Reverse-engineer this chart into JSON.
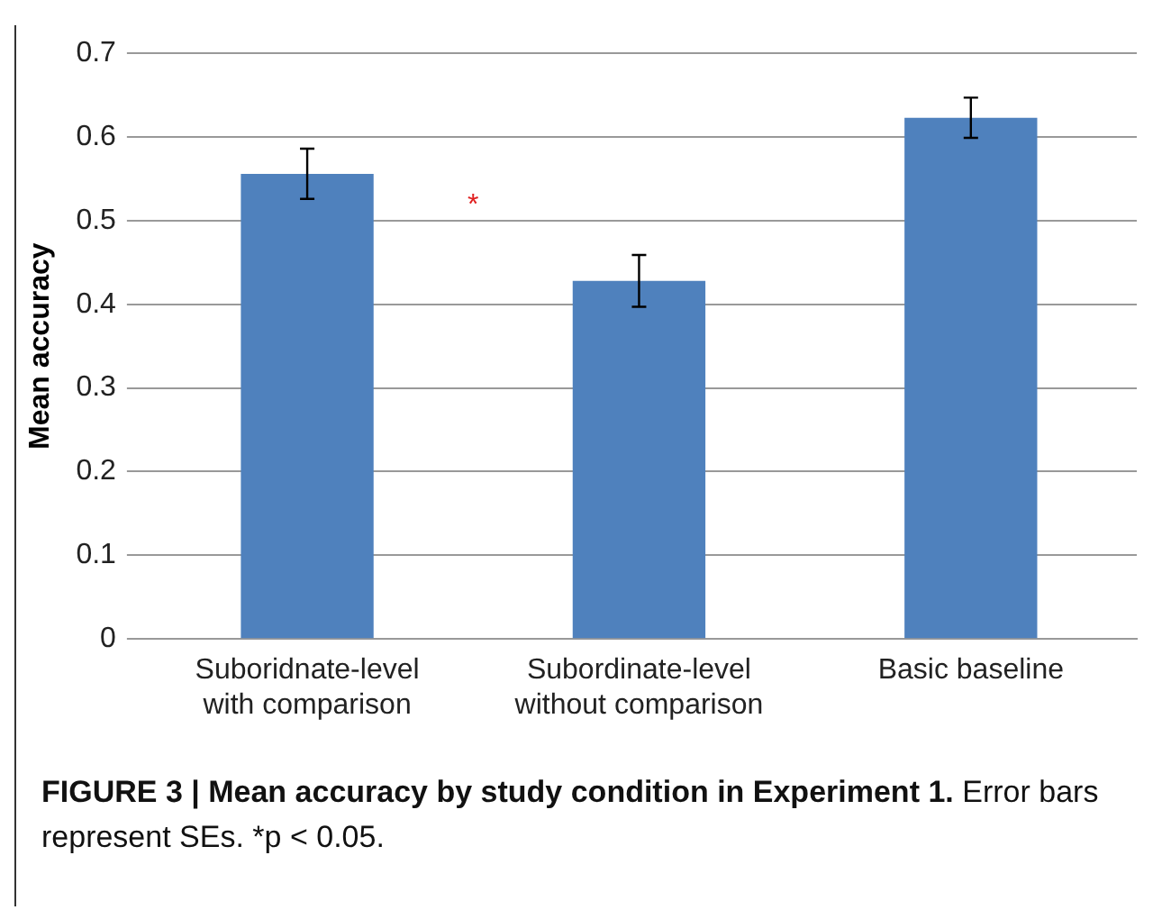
{
  "chart_data": {
    "type": "bar",
    "title": "FIGURE 3 | Mean accuracy by study condition in Experiment 1.",
    "ylabel": "Mean accuracy",
    "categories": [
      "Suboridnate-level with comparison",
      "Subordinate-level without comparison",
      "Basic baseline"
    ],
    "values": [
      0.556,
      0.428,
      0.623
    ],
    "errors": [
      0.03,
      0.031,
      0.024
    ],
    "color": "#4f81bd",
    "ylim": [
      0,
      0.7
    ],
    "yticks": [
      0,
      0.1,
      0.2,
      0.3,
      0.4,
      0.5,
      0.6,
      0.7
    ],
    "grid": "y",
    "legend": false,
    "annotations": [
      "*",
      "Error bars represent SEs. *p < 0.05."
    ]
  }
}
